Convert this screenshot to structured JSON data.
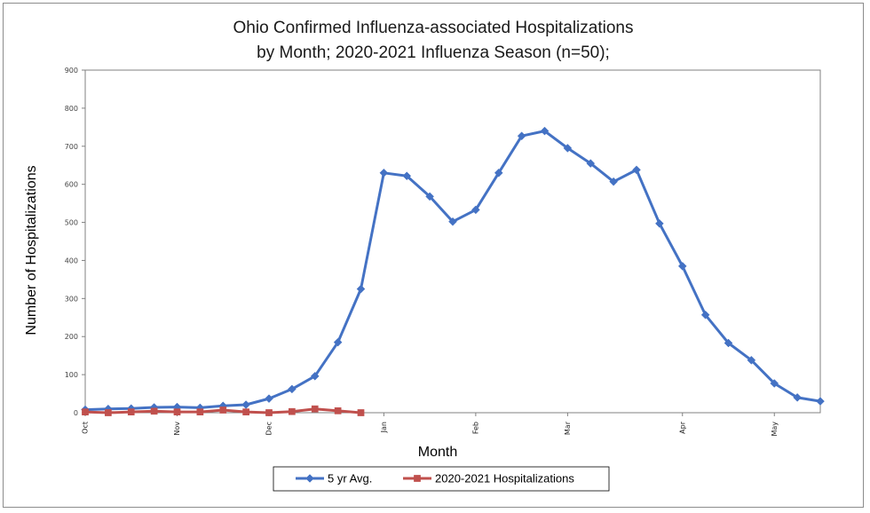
{
  "chart_data": {
    "type": "line",
    "title_lines": [
      "Ohio Confirmed Influenza-associated Hospitalizations",
      "by Month; 2020-2021 Influenza Season (n=50);"
    ],
    "xlabel": "Month",
    "ylabel": "Number of Hospitalizations",
    "ylim": [
      0,
      900
    ],
    "yticks": [
      0,
      100,
      200,
      300,
      400,
      500,
      600,
      700,
      800,
      900
    ],
    "month_ticks": [
      {
        "label": "Oct",
        "week": 0
      },
      {
        "label": "Nov",
        "week": 4
      },
      {
        "label": "Dec",
        "week": 8
      },
      {
        "label": "Jan",
        "week": 13
      },
      {
        "label": "Feb",
        "week": 17
      },
      {
        "label": "Mar",
        "week": 21
      },
      {
        "label": "Apr",
        "week": 26
      },
      {
        "label": "May",
        "week": 30
      }
    ],
    "weeks_total": 32,
    "grid": true,
    "legend_position": "bottom",
    "series": [
      {
        "name": "5 yr Avg.",
        "color": "#4472c4",
        "marker": "diamond",
        "values": [
          8,
          10,
          11,
          14,
          15,
          13,
          18,
          21,
          37,
          62,
          96,
          185,
          325,
          630,
          622,
          568,
          502,
          533,
          630,
          727,
          740,
          695,
          655,
          607,
          638,
          497,
          385,
          257,
          183,
          138,
          77,
          40,
          30
        ]
      },
      {
        "name": "2020-2021 Hospitalizations",
        "color": "#c0504d",
        "marker": "square",
        "values": [
          2,
          0,
          2,
          4,
          2,
          2,
          7,
          2,
          0,
          3,
          10,
          5,
          0
        ]
      }
    ]
  }
}
